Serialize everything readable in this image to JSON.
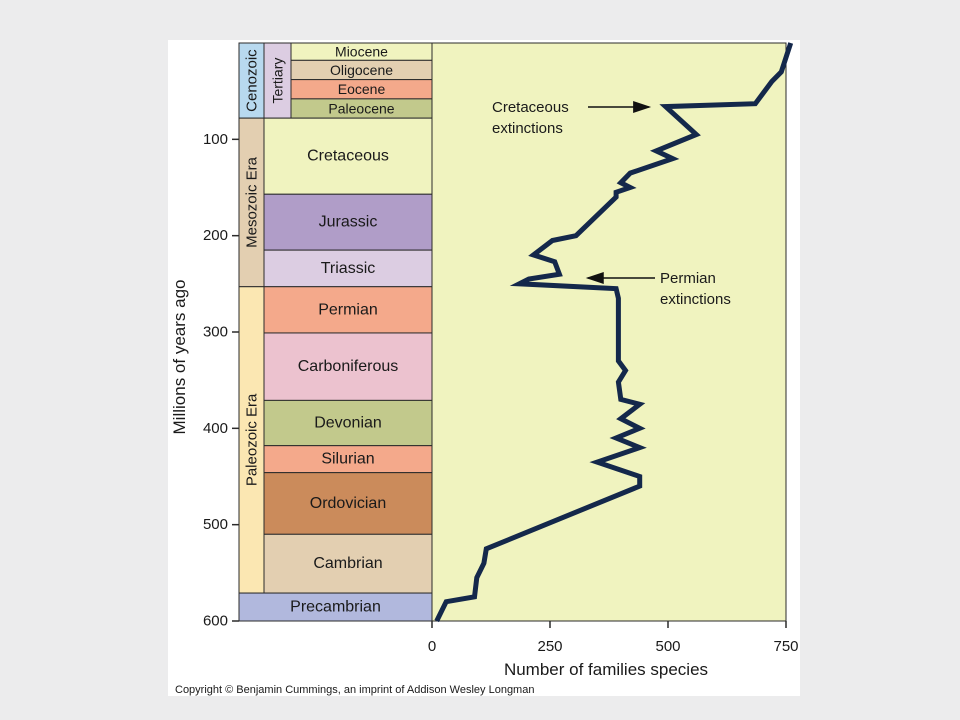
{
  "chart_data": {
    "type": "line",
    "xlabel": "Number of families species",
    "ylabel": "Millions of years ago",
    "xlim": [
      0,
      750
    ],
    "ylim": [
      0,
      600
    ],
    "x_ticks": [
      0,
      250,
      500,
      750
    ],
    "y_ticks": [
      100,
      200,
      300,
      400,
      500,
      600
    ],
    "colors": {
      "plot_bg": "#f0f3bf",
      "line": "#14284b",
      "frame_bg": "#ffffff",
      "page_bg": "#ececed"
    },
    "series": [
      {
        "points": [
          [
            10,
            600
          ],
          [
            30,
            580
          ],
          [
            90,
            575
          ],
          [
            95,
            555
          ],
          [
            110,
            540
          ],
          [
            115,
            525
          ],
          [
            440,
            460
          ],
          [
            440,
            450
          ],
          [
            350,
            435
          ],
          [
            440,
            420
          ],
          [
            390,
            410
          ],
          [
            440,
            400
          ],
          [
            400,
            390
          ],
          [
            440,
            375
          ],
          [
            400,
            370
          ],
          [
            395,
            352
          ],
          [
            410,
            340
          ],
          [
            395,
            330
          ],
          [
            395,
            265
          ],
          [
            390,
            255
          ],
          [
            185,
            250
          ],
          [
            205,
            245
          ],
          [
            270,
            240
          ],
          [
            260,
            227
          ],
          [
            215,
            220
          ],
          [
            255,
            205
          ],
          [
            305,
            200
          ],
          [
            390,
            160
          ],
          [
            390,
            155
          ],
          [
            420,
            150
          ],
          [
            400,
            145
          ],
          [
            420,
            135
          ],
          [
            510,
            120
          ],
          [
            475,
            112
          ],
          [
            560,
            95
          ],
          [
            495,
            66
          ],
          [
            685,
            63
          ],
          [
            720,
            40
          ],
          [
            740,
            30
          ],
          [
            760,
            0
          ]
        ]
      }
    ],
    "periods": [
      {
        "name": "Miocene",
        "from": 0,
        "to": 18,
        "color": "#f0f3bf"
      },
      {
        "name": "Oligocene",
        "from": 18,
        "to": 38,
        "color": "#e3cfb1"
      },
      {
        "name": "Eocene",
        "from": 38,
        "to": 58,
        "color": "#f4a98b"
      },
      {
        "name": "Paleocene",
        "from": 58,
        "to": 78,
        "color": "#c2c98c"
      },
      {
        "name": "Cretaceous",
        "from": 78,
        "to": 157,
        "color": "#f0f3bf"
      },
      {
        "name": "Jurassic",
        "from": 157,
        "to": 215,
        "color": "#b09dc8"
      },
      {
        "name": "Triassic",
        "from": 215,
        "to": 253,
        "color": "#dccde2"
      },
      {
        "name": "Permian",
        "from": 253,
        "to": 301,
        "color": "#f4a98b"
      },
      {
        "name": "Carboniferous",
        "from": 301,
        "to": 371,
        "color": "#ecc2cf"
      },
      {
        "name": "Devonian",
        "from": 371,
        "to": 418,
        "color": "#c2c98c"
      },
      {
        "name": "Silurian",
        "from": 418,
        "to": 446,
        "color": "#f4a98b"
      },
      {
        "name": "Ordovician",
        "from": 446,
        "to": 510,
        "color": "#cb8b5b"
      },
      {
        "name": "Cambrian",
        "from": 510,
        "to": 571,
        "color": "#e3cfb1"
      },
      {
        "name": "Precambrian",
        "from": 571,
        "to": 600,
        "color": "#b1b8dd",
        "full_width": true
      }
    ],
    "eras": [
      {
        "name": "Cenozoic",
        "from": 0,
        "to": 78,
        "color": "#b8d9ef"
      },
      {
        "name": "Mesozoic Era",
        "from": 78,
        "to": 253,
        "color": "#e3cfb1"
      },
      {
        "name": "Paleozoic Era",
        "from": 253,
        "to": 571,
        "color": "#fbe7b2"
      }
    ],
    "subdivisions": [
      {
        "name": "Tertiary",
        "from": 0,
        "to": 78,
        "color": "#dccde2"
      }
    ],
    "annotations": [
      {
        "line1": "Cretaceous",
        "line2": "extinctions",
        "points_to": [
          460,
          70
        ]
      },
      {
        "line1": "Permian",
        "line2": "extinctions",
        "points_to": [
          330,
          245
        ]
      }
    ]
  },
  "copyright": "Copyright © Benjamin Cummings, an imprint of Addison Wesley Longman"
}
